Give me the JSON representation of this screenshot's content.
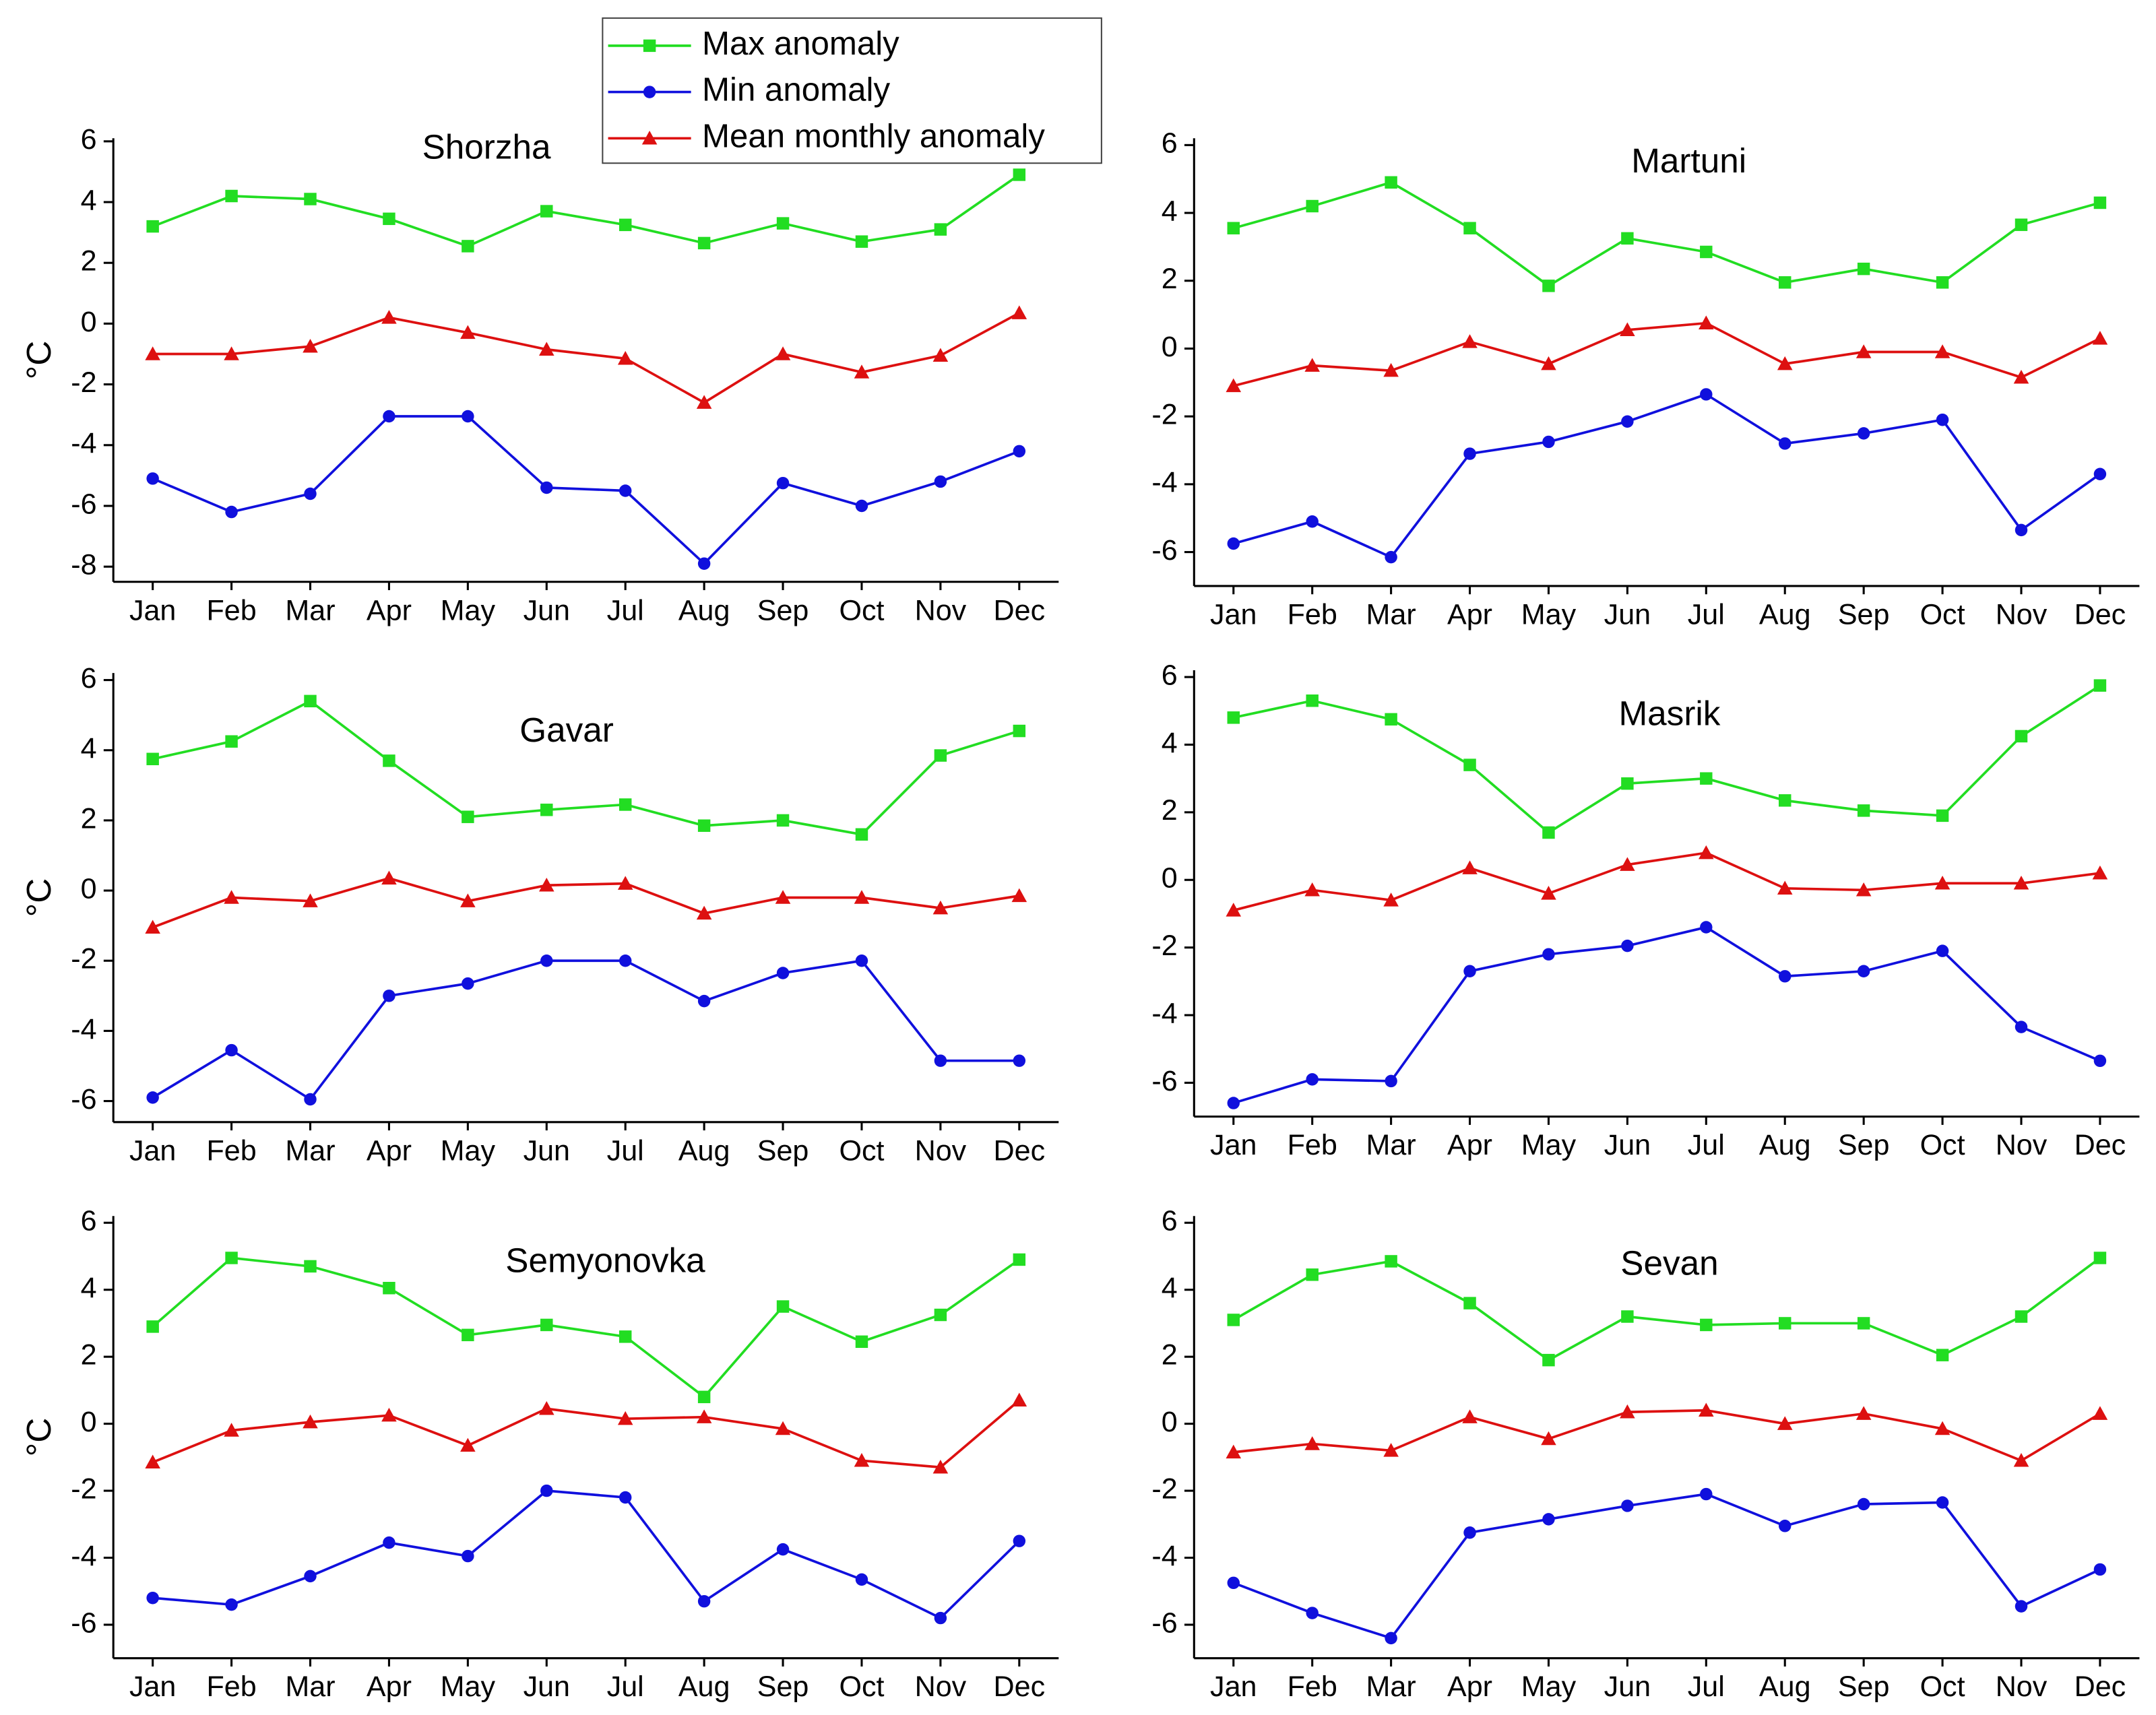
{
  "chart_data": [
    {
      "type": "line",
      "title": "Shorzha",
      "y_label": "°C",
      "categories": [
        "Jan",
        "Feb",
        "Mar",
        "Apr",
        "May",
        "Jun",
        "Jul",
        "Aug",
        "Sep",
        "Oct",
        "Nov",
        "Dec"
      ],
      "ylim": [
        -8.5,
        6.1
      ],
      "yticks": [
        -8,
        -6,
        -4,
        -2,
        0,
        2,
        4,
        6
      ],
      "series": [
        {
          "name": "Max anomaly",
          "color": "#22dd22",
          "marker": "square",
          "values": [
            3.2,
            4.2,
            4.1,
            3.45,
            2.55,
            3.7,
            3.25,
            2.65,
            3.3,
            2.7,
            3.1,
            4.9
          ]
        },
        {
          "name": "Min anomaly",
          "color": "#1010dd",
          "marker": "circle",
          "values": [
            -5.1,
            -6.2,
            -5.6,
            -3.05,
            -3.05,
            -5.4,
            -5.5,
            -7.9,
            -5.25,
            -6.0,
            -5.2,
            -4.2
          ]
        },
        {
          "name": "Mean monthly anomaly",
          "color": "#dd1010",
          "marker": "triangle",
          "values": [
            -1.0,
            -1.0,
            -0.75,
            0.2,
            -0.3,
            -0.85,
            -1.15,
            -2.6,
            -1.0,
            -1.6,
            -1.05,
            0.35
          ]
        }
      ]
    },
    {
      "type": "line",
      "title": "Martuni",
      "categories": [
        "Jan",
        "Feb",
        "Mar",
        "Apr",
        "May",
        "Jun",
        "Jul",
        "Aug",
        "Sep",
        "Oct",
        "Nov",
        "Dec"
      ],
      "ylim": [
        -7,
        6.2
      ],
      "yticks": [
        -6,
        -4,
        -2,
        0,
        2,
        4,
        6
      ],
      "series": [
        {
          "name": "Max anomaly",
          "color": "#22dd22",
          "marker": "square",
          "values": [
            3.55,
            4.2,
            4.9,
            3.55,
            1.85,
            3.25,
            2.85,
            1.95,
            2.35,
            1.95,
            3.65,
            4.3
          ]
        },
        {
          "name": "Min anomaly",
          "color": "#1010dd",
          "marker": "circle",
          "values": [
            -5.75,
            -5.1,
            -6.15,
            -3.1,
            -2.75,
            -2.15,
            -1.35,
            -2.8,
            -2.5,
            -2.1,
            -5.35,
            -3.7
          ]
        },
        {
          "name": "Mean monthly anomaly",
          "color": "#dd1010",
          "marker": "triangle",
          "values": [
            -1.1,
            -0.5,
            -0.65,
            0.2,
            -0.45,
            0.55,
            0.75,
            -0.45,
            -0.1,
            -0.1,
            -0.85,
            0.3
          ]
        }
      ]
    },
    {
      "type": "line",
      "title": "Gavar",
      "y_label": "°C",
      "categories": [
        "Jan",
        "Feb",
        "Mar",
        "Apr",
        "May",
        "Jun",
        "Jul",
        "Aug",
        "Sep",
        "Oct",
        "Nov",
        "Dec"
      ],
      "ylim": [
        -6.6,
        6.2
      ],
      "yticks": [
        -6,
        -4,
        -2,
        0,
        2,
        4,
        6
      ],
      "series": [
        {
          "name": "Max anomaly",
          "color": "#22dd22",
          "marker": "square",
          "values": [
            3.75,
            4.25,
            5.4,
            3.7,
            2.1,
            2.3,
            2.45,
            1.85,
            2.0,
            1.6,
            3.85,
            4.55
          ]
        },
        {
          "name": "Min anomaly",
          "color": "#1010dd",
          "marker": "circle",
          "values": [
            -5.9,
            -4.55,
            -5.95,
            -3.0,
            -2.65,
            -2.0,
            -2.0,
            -3.15,
            -2.35,
            -2.0,
            -4.85,
            -4.85
          ]
        },
        {
          "name": "Mean monthly anomaly",
          "color": "#dd1010",
          "marker": "triangle",
          "values": [
            -1.05,
            -0.2,
            -0.3,
            0.35,
            -0.3,
            0.15,
            0.2,
            -0.65,
            -0.2,
            -0.2,
            -0.5,
            -0.15
          ]
        }
      ]
    },
    {
      "type": "line",
      "title": "Masrik",
      "categories": [
        "Jan",
        "Feb",
        "Mar",
        "Apr",
        "May",
        "Jun",
        "Jul",
        "Aug",
        "Sep",
        "Oct",
        "Nov",
        "Dec"
      ],
      "ylim": [
        -7,
        6.2
      ],
      "yticks": [
        -6,
        -4,
        -2,
        0,
        2,
        4,
        6
      ],
      "series": [
        {
          "name": "Max anomaly",
          "color": "#22dd22",
          "marker": "square",
          "values": [
            4.8,
            5.3,
            4.75,
            3.4,
            1.4,
            2.85,
            3.0,
            2.35,
            2.05,
            1.9,
            4.25,
            5.75
          ]
        },
        {
          "name": "Min anomaly",
          "color": "#1010dd",
          "marker": "circle",
          "values": [
            -6.6,
            -5.9,
            -5.95,
            -2.7,
            -2.2,
            -1.95,
            -1.4,
            -2.85,
            -2.7,
            -2.1,
            -4.35,
            -5.35
          ]
        },
        {
          "name": "Mean monthly anomaly",
          "color": "#dd1010",
          "marker": "triangle",
          "values": [
            -0.9,
            -0.3,
            -0.6,
            0.35,
            -0.4,
            0.45,
            0.8,
            -0.25,
            -0.3,
            -0.1,
            -0.1,
            0.2
          ]
        }
      ]
    },
    {
      "type": "line",
      "title": "Semyonovka",
      "y_label": "°C",
      "categories": [
        "Jan",
        "Feb",
        "Mar",
        "Apr",
        "May",
        "Jun",
        "Jul",
        "Aug",
        "Sep",
        "Oct",
        "Nov",
        "Dec"
      ],
      "ylim": [
        -7,
        6.2
      ],
      "yticks": [
        -6,
        -4,
        -2,
        0,
        2,
        4,
        6
      ],
      "series": [
        {
          "name": "Max anomaly",
          "color": "#22dd22",
          "marker": "square",
          "values": [
            2.9,
            4.95,
            4.7,
            4.05,
            2.65,
            2.95,
            2.6,
            0.8,
            3.5,
            2.45,
            3.25,
            4.9
          ]
        },
        {
          "name": "Min anomaly",
          "color": "#1010dd",
          "marker": "circle",
          "values": [
            -5.2,
            -5.4,
            -4.55,
            -3.55,
            -3.95,
            -2.0,
            -2.2,
            -5.3,
            -3.75,
            -4.65,
            -5.8,
            -3.5
          ]
        },
        {
          "name": "Mean monthly anomaly",
          "color": "#dd1010",
          "marker": "triangle",
          "values": [
            -1.15,
            -0.2,
            0.05,
            0.25,
            -0.65,
            0.45,
            0.15,
            0.2,
            -0.15,
            -1.1,
            -1.3,
            0.7
          ]
        }
      ]
    },
    {
      "type": "line",
      "title": "Sevan",
      "categories": [
        "Jan",
        "Feb",
        "Mar",
        "Apr",
        "May",
        "Jun",
        "Jul",
        "Aug",
        "Sep",
        "Oct",
        "Nov",
        "Dec"
      ],
      "ylim": [
        -7,
        6.2
      ],
      "yticks": [
        -6,
        -4,
        -2,
        0,
        2,
        4,
        6
      ],
      "series": [
        {
          "name": "Max anomaly",
          "color": "#22dd22",
          "marker": "square",
          "values": [
            3.1,
            4.45,
            4.85,
            3.6,
            1.9,
            3.2,
            2.95,
            3.0,
            3.0,
            2.05,
            3.2,
            4.95
          ]
        },
        {
          "name": "Min anomaly",
          "color": "#1010dd",
          "marker": "circle",
          "values": [
            -4.75,
            -5.65,
            -6.4,
            -3.25,
            -2.85,
            -2.45,
            -2.1,
            -3.05,
            -2.4,
            -2.35,
            -5.45,
            -4.35
          ]
        },
        {
          "name": "Mean monthly anomaly",
          "color": "#dd1010",
          "marker": "triangle",
          "values": [
            -0.85,
            -0.6,
            -0.8,
            0.2,
            -0.45,
            0.35,
            0.4,
            0.0,
            0.3,
            -0.15,
            -1.1,
            0.3
          ]
        }
      ]
    }
  ]
}
